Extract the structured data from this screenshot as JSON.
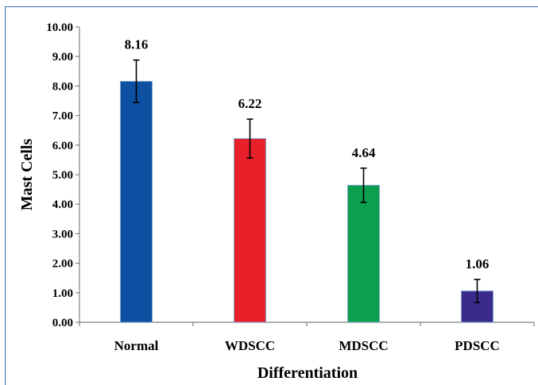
{
  "chart_data": {
    "type": "bar",
    "title": "",
    "xlabel": "Differentiation",
    "ylabel": "Mast Cells",
    "categories": [
      "Normal",
      "WDSCC",
      "MDSCC",
      "PDSCC"
    ],
    "values": [
      8.16,
      6.22,
      4.64,
      1.06
    ],
    "value_labels": [
      "8.16",
      "6.22",
      "4.64",
      "1.06"
    ],
    "error_bars": [
      0.72,
      0.66,
      0.58,
      0.39
    ],
    "colors": [
      "#0d4fa0",
      "#e8202a",
      "#0aa04d",
      "#3b2a8c"
    ],
    "ylim": [
      0,
      10
    ],
    "yticks": [
      "0.00",
      "1.00",
      "2.00",
      "3.00",
      "4.00",
      "5.00",
      "6.00",
      "7.00",
      "8.00",
      "9.00",
      "10.00"
    ],
    "grid": false,
    "legend": "none"
  }
}
